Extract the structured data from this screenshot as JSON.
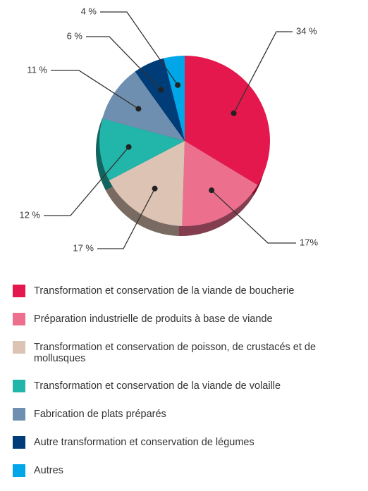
{
  "chart_data": {
    "type": "pie",
    "categories": [
      "Transformation et conservation de la viande de boucherie",
      "Préparation industrielle de produits à base de viande",
      "Transformation et conservation de poisson, de crustacés et de mollusques",
      "Transformation et conservation de la viande de volaille",
      "Fabrication de plats préparés",
      "Autre transformation et conservation de légumes",
      "Autres"
    ],
    "values": [
      34,
      17,
      17,
      12,
      11,
      6,
      4
    ],
    "value_labels": [
      "34 %",
      "17%",
      "17 %",
      "12 %",
      "11 %",
      "6 %",
      "4 %"
    ],
    "colors": [
      "#e5184d",
      "#ec6f8e",
      "#dcc3b3",
      "#22b5aa",
      "#6e8faf",
      "#003c78",
      "#00a6e8"
    ]
  }
}
